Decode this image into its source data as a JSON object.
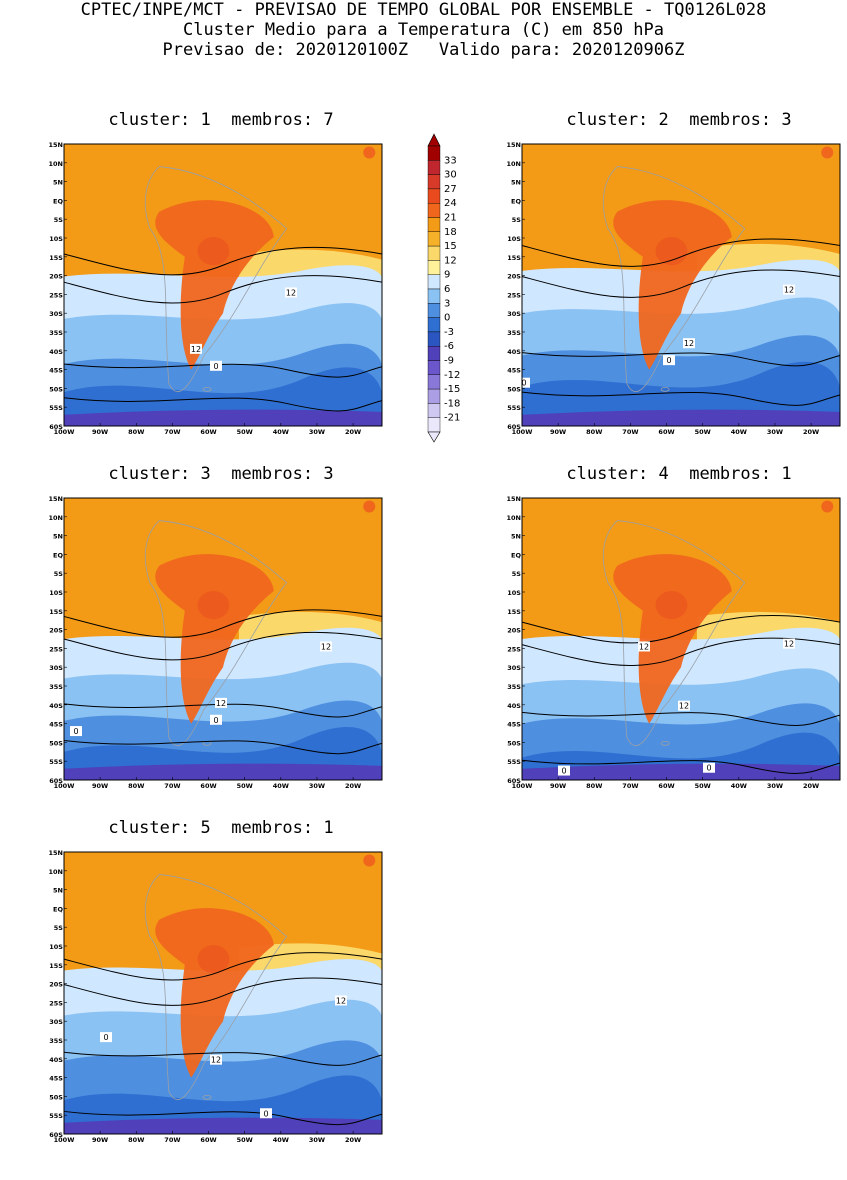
{
  "header": {
    "line1": "CPTEC/INPE/MCT - PREVISAO DE TEMPO GLOBAL POR ENSEMBLE - TQ0126L028",
    "line2": "Cluster Medio para a Temperatura (C) em 850 hPa",
    "line3": "Previsao de: 2020120100Z   Valido para: 2020120906Z"
  },
  "panels": [
    {
      "title": "cluster: 1  membros: 7",
      "contour_labels": [
        "12",
        "12",
        "0"
      ]
    },
    {
      "title": "cluster: 2  membros: 3",
      "contour_labels": [
        "12",
        "12",
        "0",
        "0"
      ]
    },
    {
      "title": "cluster: 3  membros: 3",
      "contour_labels": [
        "12",
        "12",
        "0",
        "0"
      ]
    },
    {
      "title": "cluster: 4  membros: 1",
      "contour_labels": [
        "12",
        "12",
        "12",
        "0",
        "0"
      ]
    },
    {
      "title": "cluster: 5  membros: 1",
      "contour_labels": [
        "12",
        "12",
        "0",
        "0"
      ]
    }
  ],
  "lat_labels": [
    "15N",
    "10N",
    "5N",
    "EQ",
    "5S",
    "10S",
    "15S",
    "20S",
    "25S",
    "30S",
    "35S",
    "40S",
    "45S",
    "50S",
    "55S",
    "60S"
  ],
  "lon_labels": [
    "100W",
    "90W",
    "80W",
    "70W",
    "60W",
    "50W",
    "40W",
    "30W",
    "20W"
  ],
  "colorbar": {
    "labels": [
      "33",
      "30",
      "27",
      "24",
      "21",
      "18",
      "15",
      "12",
      "9",
      "6",
      "3",
      "0",
      "-3",
      "-6",
      "-9",
      "-12",
      "-15",
      "-18",
      "-21"
    ],
    "colors": [
      "#a00000",
      "#c0262e",
      "#d83a2a",
      "#ea4b1e",
      "#f0661c",
      "#f39a16",
      "#f5b12a",
      "#fbd86a",
      "#fff29a",
      "#cfe7ff",
      "#8bc2f4",
      "#4f8fdf",
      "#2f6fd1",
      "#2b55c0",
      "#5040ba",
      "#6b56cc",
      "#8a78d8",
      "#ab9ee4",
      "#cfc8f0",
      "#ece8fb"
    ]
  }
}
